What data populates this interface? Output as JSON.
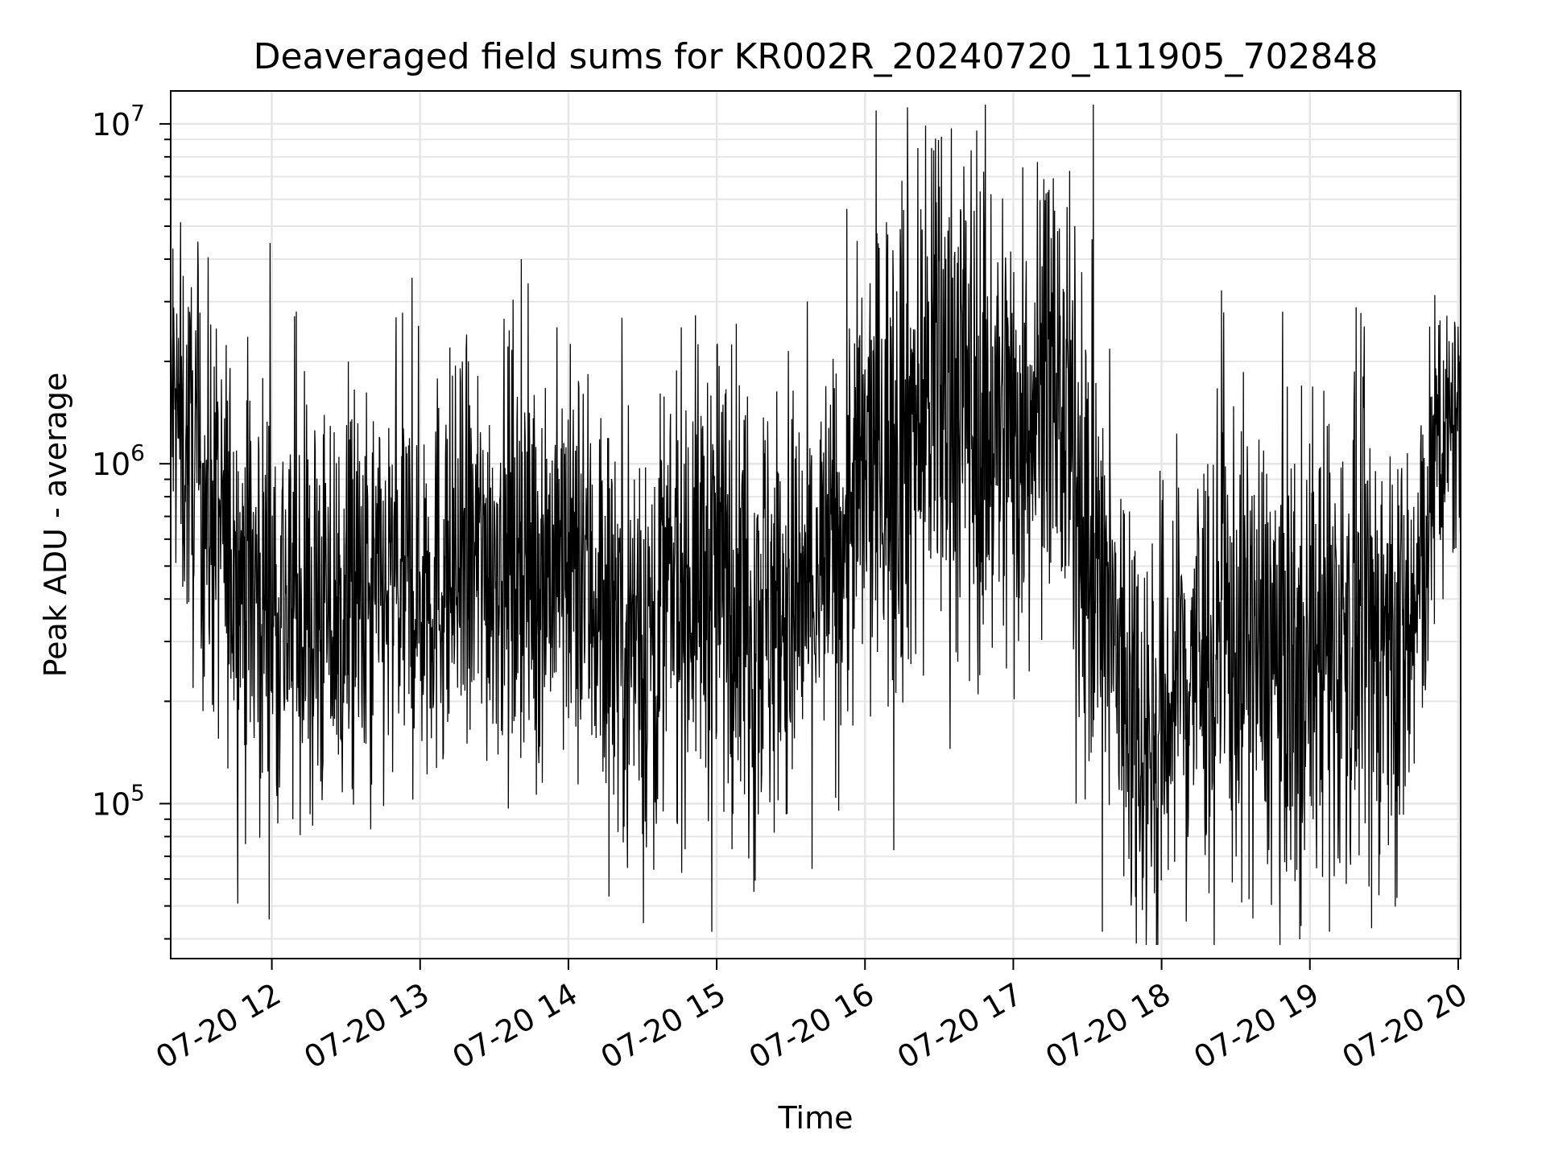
{
  "chart_data": {
    "type": "line",
    "title": "Deaveraged field sums for KR002R_20240720_111905_702848",
    "xlabel": "Time",
    "ylabel": "Peak ADU - average",
    "yscale": "log",
    "ylim": [
      35000,
      12500000
    ],
    "xlim": [
      "2024-07-20 11:19:05",
      "2024-07-20 20:01:00"
    ],
    "grid": true,
    "line_color": "#000000",
    "grid_color": "#e6e6e6",
    "x_ticks": [
      "2024-07-20 12:00",
      "2024-07-20 13:00",
      "2024-07-20 14:00",
      "2024-07-20 15:00",
      "2024-07-20 16:00",
      "2024-07-20 17:00",
      "2024-07-20 18:00",
      "2024-07-20 19:00",
      "2024-07-20 20:00"
    ],
    "x_tick_labels": [
      "07-20 12",
      "07-20 13",
      "07-20 14",
      "07-20 15",
      "07-20 16",
      "07-20 17",
      "07-20 18",
      "07-20 19",
      "07-20 20"
    ],
    "y_ticks": [
      {
        "base": "10",
        "exp": "5",
        "value": 100000
      },
      {
        "base": "10",
        "exp": "6",
        "value": 1000000
      },
      {
        "base": "10",
        "exp": "7",
        "value": 10000000
      }
    ],
    "series": [
      {
        "x": [
          "2024-07-20 11:19",
          "2024-07-20 11:30",
          "2024-07-20 11:40",
          "2024-07-20 11:50",
          "2024-07-20 12:00",
          "2024-07-20 12:15",
          "2024-07-20 12:30",
          "2024-07-20 12:45",
          "2024-07-20 13:00",
          "2024-07-20 13:15",
          "2024-07-20 13:30",
          "2024-07-20 13:45",
          "2024-07-20 14:00",
          "2024-07-20 14:15",
          "2024-07-20 14:30",
          "2024-07-20 14:45",
          "2024-07-20 15:00",
          "2024-07-20 15:15",
          "2024-07-20 15:30",
          "2024-07-20 15:45",
          "2024-07-20 16:00",
          "2024-07-20 16:15",
          "2024-07-20 16:30",
          "2024-07-20 16:45",
          "2024-07-20 17:00",
          "2024-07-20 17:15",
          "2024-07-20 17:25",
          "2024-07-20 17:40",
          "2024-07-20 17:55",
          "2024-07-20 18:10",
          "2024-07-20 18:25",
          "2024-07-20 18:40",
          "2024-07-20 18:55",
          "2024-07-20 19:10",
          "2024-07-20 19:25",
          "2024-07-20 19:40",
          "2024-07-20 19:50",
          "2024-07-20 20:00"
        ],
        "center": [
          1500000,
          900000,
          600000,
          450000,
          400000,
          370000,
          350000,
          400000,
          450000,
          480000,
          550000,
          550000,
          500000,
          400000,
          300000,
          450000,
          500000,
          400000,
          350000,
          500000,
          900000,
          1300000,
          1700000,
          1500000,
          1200000,
          2000000,
          900000,
          300000,
          150000,
          250000,
          300000,
          280000,
          270000,
          300000,
          320000,
          280000,
          900000,
          1400000
        ],
        "spread": [
          0.25,
          0.3,
          0.3,
          0.32,
          0.32,
          0.32,
          0.32,
          0.3,
          0.3,
          0.3,
          0.3,
          0.3,
          0.3,
          0.33,
          0.35,
          0.33,
          0.33,
          0.35,
          0.33,
          0.3,
          0.35,
          0.4,
          0.4,
          0.4,
          0.38,
          0.3,
          0.35,
          0.35,
          0.33,
          0.33,
          0.35,
          0.35,
          0.35,
          0.35,
          0.35,
          0.33,
          0.25,
          0.2
        ],
        "spikes": [
          {
            "x": "2024-07-20 11:20",
            "y": 4300000
          },
          {
            "x": "2024-07-20 13:41",
            "y": 4000000
          },
          {
            "x": "2024-07-20 16:27",
            "y": 8500000
          },
          {
            "x": "2024-07-20 16:35",
            "y": 9700000
          },
          {
            "x": "2024-07-20 16:40",
            "y": 7500000
          },
          {
            "x": "2024-07-20 16:15",
            "y": 6800000
          },
          {
            "x": "2024-07-20 14:58",
            "y": 42000
          },
          {
            "x": "2024-07-20 17:36",
            "y": 42000
          },
          {
            "x": "2024-07-20 19:25",
            "y": 43000
          },
          {
            "x": "2024-07-20 12:40",
            "y": 84000
          },
          {
            "x": "2024-07-20 15:15",
            "y": 55000
          },
          {
            "x": "2024-07-20 18:10",
            "y": 45000
          }
        ]
      }
    ]
  }
}
